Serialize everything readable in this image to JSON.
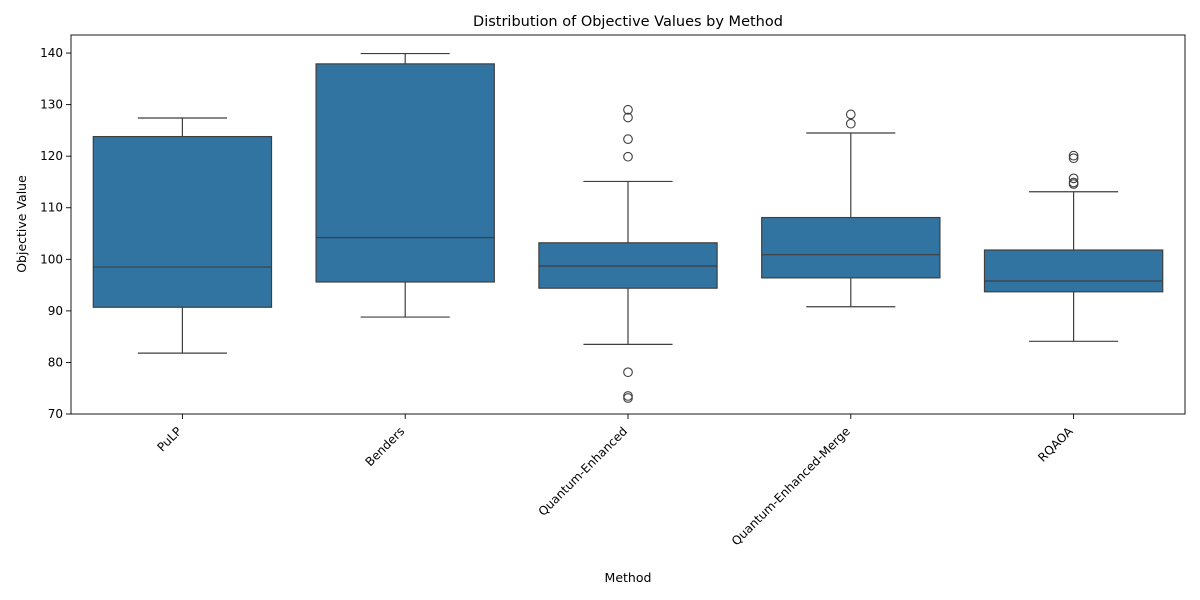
{
  "chart_data": {
    "type": "box",
    "title": "Distribution of Objective Values by Method",
    "xlabel": "Method",
    "ylabel": "Objective Value",
    "ylim": [
      70,
      143.5
    ],
    "yticks": [
      70,
      80,
      90,
      100,
      110,
      120,
      130,
      140
    ],
    "grid": false,
    "color": "#3274a1",
    "categories": [
      "PuLP",
      "Benders",
      "Quantum-Enhanced",
      "Quantum-Enhanced-Merge",
      "RQAOA"
    ],
    "boxes": [
      {
        "category": "PuLP",
        "whisker_low": 81.8,
        "q1": 90.7,
        "median": 98.5,
        "q3": 123.8,
        "whisker_high": 127.4,
        "outliers": []
      },
      {
        "category": "Benders",
        "whisker_low": 88.8,
        "q1": 95.6,
        "median": 104.2,
        "q3": 137.9,
        "whisker_high": 139.9,
        "outliers": []
      },
      {
        "category": "Quantum-Enhanced",
        "whisker_low": 83.5,
        "q1": 94.4,
        "median": 98.7,
        "q3": 103.2,
        "whisker_high": 115.1,
        "outliers": [
          129.0,
          127.5,
          123.3,
          119.9,
          78.1,
          73.5,
          73.1
        ]
      },
      {
        "category": "Quantum-Enhanced-Merge",
        "whisker_low": 90.8,
        "q1": 96.4,
        "median": 100.9,
        "q3": 108.1,
        "whisker_high": 124.5,
        "outliers": [
          128.1,
          126.3
        ]
      },
      {
        "category": "RQAOA",
        "whisker_low": 84.1,
        "q1": 93.7,
        "median": 95.8,
        "q3": 101.8,
        "whisker_high": 113.1,
        "outliers": [
          120.1,
          119.6,
          115.7,
          114.9,
          114.6
        ]
      }
    ]
  }
}
